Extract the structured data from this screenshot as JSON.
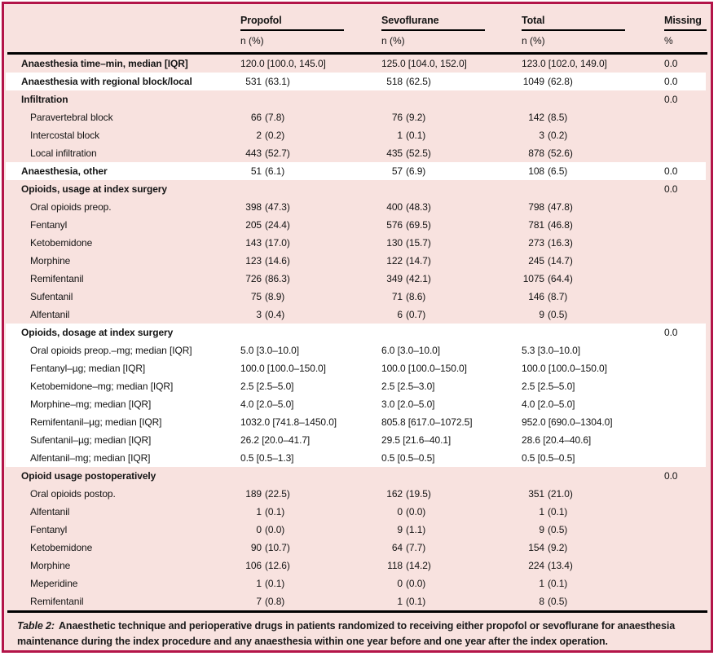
{
  "frame": {
    "border_color": "#b31449",
    "background_color": "#f8e2df",
    "band_color": "#ffffff",
    "rule_color": "#000000"
  },
  "header": {
    "columns": [
      {
        "label": "Propofol",
        "sub": "n (%)"
      },
      {
        "label": "Sevoflurane",
        "sub": "n (%)"
      },
      {
        "label": "Total",
        "sub": "n (%)"
      },
      {
        "label": "Missing",
        "sub": "%"
      }
    ]
  },
  "rows": [
    {
      "label": "Anaesthesia time–min, median [IQR]",
      "bold": true,
      "indent": false,
      "band": "pink",
      "cells": [
        {
          "text": "120.0 [100.0, 145.0]"
        },
        {
          "text": "125.0 [104.0, 152.0]"
        },
        {
          "text": "123.0 [102.0, 149.0]"
        }
      ],
      "missing": "0.0"
    },
    {
      "label": "Anaesthesia with regional block/local",
      "bold": true,
      "indent": false,
      "band": "white",
      "cells": [
        {
          "n": "531",
          "pct": "(63.1)"
        },
        {
          "n": "518",
          "pct": "(62.5)"
        },
        {
          "n": "1049",
          "pct": "(62.8)"
        }
      ],
      "missing": "0.0"
    },
    {
      "label": "Infiltration",
      "bold": true,
      "indent": false,
      "band": "pink",
      "cells": [
        null,
        null,
        null
      ],
      "missing": "0.0"
    },
    {
      "label": "Paravertebral block",
      "bold": false,
      "indent": true,
      "band": "pink",
      "cells": [
        {
          "n": "66",
          "pct": "(7.8)"
        },
        {
          "n": "76",
          "pct": "(9.2)"
        },
        {
          "n": "142",
          "pct": "(8.5)"
        }
      ],
      "missing": ""
    },
    {
      "label": "Intercostal block",
      "bold": false,
      "indent": true,
      "band": "pink",
      "cells": [
        {
          "n": "2",
          "pct": "(0.2)"
        },
        {
          "n": "1",
          "pct": "(0.1)"
        },
        {
          "n": "3",
          "pct": "(0.2)"
        }
      ],
      "missing": ""
    },
    {
      "label": "Local infiltration",
      "bold": false,
      "indent": true,
      "band": "pink",
      "cells": [
        {
          "n": "443",
          "pct": "(52.7)"
        },
        {
          "n": "435",
          "pct": "(52.5)"
        },
        {
          "n": "878",
          "pct": "(52.6)"
        }
      ],
      "missing": ""
    },
    {
      "label": "Anaesthesia, other",
      "bold": true,
      "indent": false,
      "band": "white",
      "cells": [
        {
          "n": "51",
          "pct": "(6.1)"
        },
        {
          "n": "57",
          "pct": "(6.9)"
        },
        {
          "n": "108",
          "pct": "(6.5)"
        }
      ],
      "missing": "0.0"
    },
    {
      "label": "Opioids, usage at index surgery",
      "bold": true,
      "indent": false,
      "band": "pink",
      "cells": [
        null,
        null,
        null
      ],
      "missing": "0.0"
    },
    {
      "label": "Oral opioids preop.",
      "bold": false,
      "indent": true,
      "band": "pink",
      "cells": [
        {
          "n": "398",
          "pct": "(47.3)"
        },
        {
          "n": "400",
          "pct": "(48.3)"
        },
        {
          "n": "798",
          "pct": "(47.8)"
        }
      ],
      "missing": ""
    },
    {
      "label": "Fentanyl",
      "bold": false,
      "indent": true,
      "band": "pink",
      "cells": [
        {
          "n": "205",
          "pct": "(24.4)"
        },
        {
          "n": "576",
          "pct": "(69.5)"
        },
        {
          "n": "781",
          "pct": "(46.8)"
        }
      ],
      "missing": ""
    },
    {
      "label": "Ketobemidone",
      "bold": false,
      "indent": true,
      "band": "pink",
      "cells": [
        {
          "n": "143",
          "pct": "(17.0)"
        },
        {
          "n": "130",
          "pct": "(15.7)"
        },
        {
          "n": "273",
          "pct": "(16.3)"
        }
      ],
      "missing": ""
    },
    {
      "label": "Morphine",
      "bold": false,
      "indent": true,
      "band": "pink",
      "cells": [
        {
          "n": "123",
          "pct": "(14.6)"
        },
        {
          "n": "122",
          "pct": "(14.7)"
        },
        {
          "n": "245",
          "pct": "(14.7)"
        }
      ],
      "missing": ""
    },
    {
      "label": "Remifentanil",
      "bold": false,
      "indent": true,
      "band": "pink",
      "cells": [
        {
          "n": "726",
          "pct": "(86.3)"
        },
        {
          "n": "349",
          "pct": "(42.1)"
        },
        {
          "n": "1075",
          "pct": "(64.4)"
        }
      ],
      "missing": ""
    },
    {
      "label": "Sufentanil",
      "bold": false,
      "indent": true,
      "band": "pink",
      "cells": [
        {
          "n": "75",
          "pct": "(8.9)"
        },
        {
          "n": "71",
          "pct": "(8.6)"
        },
        {
          "n": "146",
          "pct": "(8.7)"
        }
      ],
      "missing": ""
    },
    {
      "label": "Alfentanil",
      "bold": false,
      "indent": true,
      "band": "pink",
      "cells": [
        {
          "n": "3",
          "pct": "(0.4)"
        },
        {
          "n": "6",
          "pct": "(0.7)"
        },
        {
          "n": "9",
          "pct": "(0.5)"
        }
      ],
      "missing": ""
    },
    {
      "label": "Opioids, dosage at index surgery",
      "bold": true,
      "indent": false,
      "band": "white",
      "cells": [
        null,
        null,
        null
      ],
      "missing": "0.0"
    },
    {
      "label": "Oral opioids preop.–mg; median [IQR]",
      "bold": false,
      "indent": true,
      "band": "white",
      "cells": [
        {
          "text": "5.0 [3.0–10.0]"
        },
        {
          "text": "6.0 [3.0–10.0]"
        },
        {
          "text": "5.3 [3.0–10.0]"
        }
      ],
      "missing": ""
    },
    {
      "label": "Fentanyl–µg; median [IQR]",
      "bold": false,
      "indent": true,
      "band": "white",
      "cells": [
        {
          "text": "100.0 [100.0–150.0]"
        },
        {
          "text": "100.0 [100.0–150.0]"
        },
        {
          "text": "100.0 [100.0–150.0]"
        }
      ],
      "missing": ""
    },
    {
      "label": "Ketobemidone–mg; median [IQR]",
      "bold": false,
      "indent": true,
      "band": "white",
      "cells": [
        {
          "text": "2.5 [2.5–5.0]"
        },
        {
          "text": "2.5 [2.5–3.0]"
        },
        {
          "text": "2.5 [2.5–5.0]"
        }
      ],
      "missing": ""
    },
    {
      "label": "Morphine–mg; median [IQR]",
      "bold": false,
      "indent": true,
      "band": "white",
      "cells": [
        {
          "text": "4.0 [2.0–5.0]"
        },
        {
          "text": "3.0 [2.0–5.0]"
        },
        {
          "text": "4.0 [2.0–5.0]"
        }
      ],
      "missing": ""
    },
    {
      "label": "Remifentanil–µg; median [IQR]",
      "bold": false,
      "indent": true,
      "band": "white",
      "cells": [
        {
          "text": "1032.0 [741.8–1450.0]"
        },
        {
          "text": "805.8 [617.0–1072.5]"
        },
        {
          "text": "952.0 [690.0–1304.0]"
        }
      ],
      "missing": ""
    },
    {
      "label": "Sufentanil–µg; median [IQR]",
      "bold": false,
      "indent": true,
      "band": "white",
      "cells": [
        {
          "text": "26.2 [20.0–41.7]"
        },
        {
          "text": "29.5 [21.6–40.1]"
        },
        {
          "text": "28.6 [20.4–40.6]"
        }
      ],
      "missing": ""
    },
    {
      "label": "Alfentanil–mg; median [IQR]",
      "bold": false,
      "indent": true,
      "band": "white",
      "cells": [
        {
          "text": "0.5 [0.5–1.3]"
        },
        {
          "text": "0.5 [0.5–0.5]"
        },
        {
          "text": "0.5 [0.5–0.5]"
        }
      ],
      "missing": ""
    },
    {
      "label": "Opioid usage postoperatively",
      "bold": true,
      "indent": false,
      "band": "pink",
      "cells": [
        null,
        null,
        null
      ],
      "missing": "0.0"
    },
    {
      "label": "Oral opioids postop.",
      "bold": false,
      "indent": true,
      "band": "pink",
      "cells": [
        {
          "n": "189",
          "pct": "(22.5)"
        },
        {
          "n": "162",
          "pct": "(19.5)"
        },
        {
          "n": "351",
          "pct": "(21.0)"
        }
      ],
      "missing": ""
    },
    {
      "label": "Alfentanil",
      "bold": false,
      "indent": true,
      "band": "pink",
      "cells": [
        {
          "n": "1",
          "pct": "(0.1)"
        },
        {
          "n": "0",
          "pct": "(0.0)"
        },
        {
          "n": "1",
          "pct": "(0.1)"
        }
      ],
      "missing": ""
    },
    {
      "label": "Fentanyl",
      "bold": false,
      "indent": true,
      "band": "pink",
      "cells": [
        {
          "n": "0",
          "pct": "(0.0)"
        },
        {
          "n": "9",
          "pct": "(1.1)"
        },
        {
          "n": "9",
          "pct": "(0.5)"
        }
      ],
      "missing": ""
    },
    {
      "label": "Ketobemidone",
      "bold": false,
      "indent": true,
      "band": "pink",
      "cells": [
        {
          "n": "90",
          "pct": "(10.7)"
        },
        {
          "n": "64",
          "pct": "(7.7)"
        },
        {
          "n": "154",
          "pct": "(9.2)"
        }
      ],
      "missing": ""
    },
    {
      "label": "Morphine",
      "bold": false,
      "indent": true,
      "band": "pink",
      "cells": [
        {
          "n": "106",
          "pct": "(12.6)"
        },
        {
          "n": "118",
          "pct": "(14.2)"
        },
        {
          "n": "224",
          "pct": "(13.4)"
        }
      ],
      "missing": ""
    },
    {
      "label": "Meperidine",
      "bold": false,
      "indent": true,
      "band": "pink",
      "cells": [
        {
          "n": "1",
          "pct": "(0.1)"
        },
        {
          "n": "0",
          "pct": "(0.0)"
        },
        {
          "n": "1",
          "pct": "(0.1)"
        }
      ],
      "missing": ""
    },
    {
      "label": "Remifentanil",
      "bold": false,
      "indent": true,
      "band": "pink",
      "cells": [
        {
          "n": "7",
          "pct": "(0.8)"
        },
        {
          "n": "1",
          "pct": "(0.1)"
        },
        {
          "n": "8",
          "pct": "(0.5)"
        }
      ],
      "missing": ""
    }
  ],
  "caption": {
    "tag": "Table 2:",
    "text": "Anaesthetic technique and perioperative drugs in patients randomized to receiving either propofol or sevoflurane for anaesthesia maintenance during the index procedure and any anaesthesia within one year before and one year after the index operation."
  }
}
